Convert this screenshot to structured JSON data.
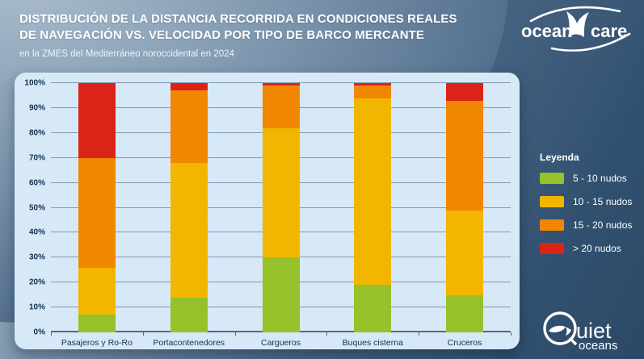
{
  "header": {
    "title_line1": "DISTRIBUCIÓN DE LA DISTANCIA RECORRIDA EN CONDICIONES REALES",
    "title_line2": "DE NAVEGACIÓN VS. VELOCIDAD POR TIPO DE BARCO MERCANTE",
    "subtitle": "en la ZMES del Mediterráneo noroccidental en 2024"
  },
  "logos": {
    "oceancare": {
      "part1": "ocean",
      "part2": "care"
    },
    "quietoceans": {
      "part1": "uiet",
      "part2": "oceans"
    }
  },
  "legend": {
    "title": "Leyenda",
    "items": [
      {
        "label": "5 - 10 nudos",
        "color": "#96C12B"
      },
      {
        "label": "10 - 15 nudos",
        "color": "#F2B600"
      },
      {
        "label": "15 - 20 nudos",
        "color": "#F18700"
      },
      {
        "label": "> 20 nudos",
        "color": "#DA2418"
      }
    ]
  },
  "chart_data": {
    "type": "bar",
    "stacked": true,
    "title": "Distribución de la distancia recorrida en condiciones reales de navegación vs. velocidad por tipo de barco mercante",
    "subtitle": "en la ZMES del Mediterráneo noroccidental en 2024",
    "categories": [
      "Pasajeros y Ro-Ro",
      "Portacontenedores",
      "Cargueros",
      "Buques cisterna",
      "Cruceros"
    ],
    "series": [
      {
        "name": "5 - 10 nudos",
        "color": "#96C12B",
        "values": [
          7,
          14,
          30,
          19,
          15
        ]
      },
      {
        "name": "10 - 15 nudos",
        "color": "#F2B600",
        "values": [
          19,
          54,
          52,
          75,
          34
        ]
      },
      {
        "name": "15 - 20 nudos",
        "color": "#F18700",
        "values": [
          44,
          29,
          17,
          5,
          44
        ]
      },
      {
        "name": "> 20 nudos",
        "color": "#DA2418",
        "values": [
          30,
          3,
          1,
          1,
          7
        ]
      }
    ],
    "xlabel": "",
    "ylabel": "",
    "ylim": [
      0,
      100
    ],
    "y_ticks": [
      "0%",
      "10%",
      "20%",
      "30%",
      "40%",
      "50%",
      "60%",
      "70%",
      "80%",
      "90%",
      "100%"
    ],
    "grid": true,
    "legend_position": "right",
    "unit": "% de distancia recorrida"
  },
  "colors": {
    "panel_bg": "#D7E9F7",
    "grid": "#8499AE",
    "axis": "#4F6A85",
    "axis_text": "#12304E",
    "bg_dark": "#2D4866",
    "bg_light": "#A9BCCD"
  }
}
